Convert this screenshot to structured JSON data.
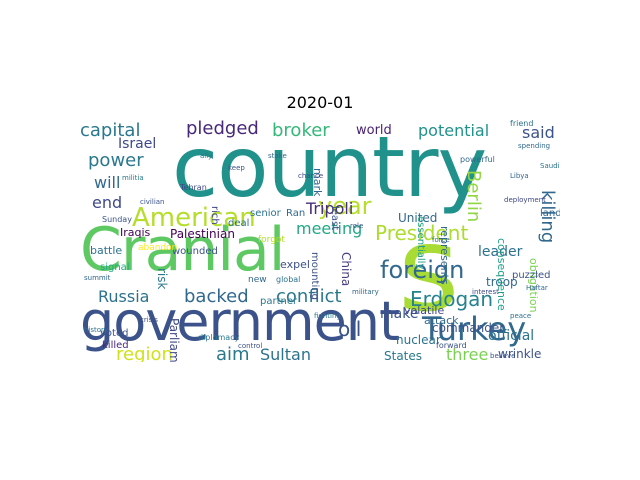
{
  "title": "2020-01",
  "words": [
    {
      "text": "country",
      "color": "#21918c"
    },
    {
      "text": "Cranial",
      "color": "#5ec962"
    },
    {
      "text": "s",
      "color": "#a8db34"
    },
    {
      "text": "government",
      "color": "#3b528b"
    },
    {
      "text": "Turkey",
      "color": "#31688e"
    },
    {
      "text": "American",
      "color": "#b5de2b"
    },
    {
      "text": "foreign",
      "color": "#31688e"
    },
    {
      "text": "President",
      "color": "#addc30"
    },
    {
      "text": "year",
      "color": "#b5de2b"
    },
    {
      "text": "Erdogan",
      "color": "#26828e"
    },
    {
      "text": "conflict",
      "color": "#2a788e"
    },
    {
      "text": "backed",
      "color": "#31688e"
    },
    {
      "text": "Russia",
      "color": "#2c728e"
    },
    {
      "text": "oil",
      "color": "#3b528b"
    },
    {
      "text": "aim",
      "color": "#2a788e"
    },
    {
      "text": "Sultan",
      "color": "#2c728e"
    },
    {
      "text": "region",
      "color": "#d0e11c"
    },
    {
      "text": "capital",
      "color": "#2a788e"
    },
    {
      "text": "pledged",
      "color": "#482878"
    },
    {
      "text": "broker",
      "color": "#35b779"
    },
    {
      "text": "potential",
      "color": "#21918c"
    },
    {
      "text": "said",
      "color": "#3b528b"
    },
    {
      "text": "power",
      "color": "#2a788e"
    },
    {
      "text": "will",
      "color": "#31688e"
    },
    {
      "text": "end",
      "color": "#3e4989"
    },
    {
      "text": "Tripoli",
      "color": "#472d7b"
    },
    {
      "text": "killing",
      "color": "#31688e"
    },
    {
      "text": "Berlin",
      "color": "#90d743"
    },
    {
      "text": "meeting",
      "color": "#22a884"
    },
    {
      "text": "leader",
      "color": "#2c728e"
    },
    {
      "text": "three",
      "color": "#7ad151"
    },
    {
      "text": "make",
      "color": "#3b528b"
    },
    {
      "text": "official",
      "color": "#2c728e"
    },
    {
      "text": "Israel",
      "color": "#3e4989"
    },
    {
      "text": "world",
      "color": "#481f70"
    },
    {
      "text": "Palestinian",
      "color": "#440154"
    },
    {
      "text": "United",
      "color": "#31688e"
    },
    {
      "text": "States",
      "color": "#2a788e"
    },
    {
      "text": "China",
      "color": "#433e85"
    },
    {
      "text": "Parliament",
      "color": "#3e4989"
    },
    {
      "text": "risk",
      "color": "#2a788e"
    },
    {
      "text": "commander",
      "color": "#3b528b"
    },
    {
      "text": "nuclear",
      "color": "#2c728e"
    },
    {
      "text": "attack",
      "color": "#31688e"
    },
    {
      "text": "wrinkle",
      "color": "#3b528b"
    },
    {
      "text": "troop",
      "color": "#31688e"
    },
    {
      "text": "volatile",
      "color": "#3e4989"
    },
    {
      "text": "represents",
      "color": "#31688e"
    },
    {
      "text": "Iraqis",
      "color": "#440154"
    },
    {
      "text": "battle",
      "color": "#2c728e"
    },
    {
      "text": "signal",
      "color": "#22a884"
    },
    {
      "text": "voted",
      "color": "#3b528b"
    },
    {
      "text": "killed",
      "color": "#482878"
    },
    {
      "text": "expel",
      "color": "#3b528b"
    },
    {
      "text": "senior",
      "color": "#2c728e"
    },
    {
      "text": "land",
      "color": "#31688e"
    },
    {
      "text": "obligation",
      "color": "#7ad151"
    },
    {
      "text": "consequence",
      "color": "#1f9e89"
    },
    {
      "text": "mounting",
      "color": "#3b528b"
    },
    {
      "text": "deal",
      "color": "#2c728e"
    },
    {
      "text": "rich",
      "color": "#3e4989"
    },
    {
      "text": "mark",
      "color": "#31688e"
    },
    {
      "text": "least",
      "color": "#3b528b"
    },
    {
      "text": "partner",
      "color": "#2a788e"
    },
    {
      "text": "wounded",
      "color": "#3b528b"
    },
    {
      "text": "Ran",
      "color": "#31688e"
    },
    {
      "text": "essentially",
      "color": "#1f9e89"
    },
    {
      "text": "puzzled",
      "color": "#3b528b"
    },
    {
      "text": "abandon",
      "color": "#fde725"
    },
    {
      "text": "forgot",
      "color": "#b5de2b"
    },
    {
      "text": "new",
      "color": "#31688e"
    },
    {
      "text": "Sunday",
      "color": "#3b528b"
    },
    {
      "text": "Tehran",
      "color": "#3e4989"
    },
    {
      "text": "global",
      "color": "#2c728e"
    },
    {
      "text": "powerful",
      "color": "#31688e"
    },
    {
      "text": "diplomacy",
      "color": "#2a788e"
    },
    {
      "text": "forward",
      "color": "#3b528b"
    },
    {
      "text": "spending",
      "color": "#31688e"
    },
    {
      "text": "deployment",
      "color": "#3e4989"
    },
    {
      "text": "friend",
      "color": "#2c728e"
    },
    {
      "text": "believe",
      "color": "#3b528b"
    },
    {
      "text": "military",
      "color": "#31688e"
    },
    {
      "text": "ally",
      "color": "#2a788e"
    },
    {
      "text": "keep",
      "color": "#3b528b"
    },
    {
      "text": "stake",
      "color": "#31688e"
    },
    {
      "text": "chance",
      "color": "#3e4989"
    },
    {
      "text": "Saudi",
      "color": "#2c728e"
    },
    {
      "text": "Libya",
      "color": "#31688e"
    },
    {
      "text": "civilian",
      "color": "#3b528b"
    },
    {
      "text": "militia",
      "color": "#2a788e"
    },
    {
      "text": "Haftar",
      "color": "#31688e"
    },
    {
      "text": "control",
      "color": "#3b528b"
    },
    {
      "text": "history",
      "color": "#2c728e"
    },
    {
      "text": "interest",
      "color": "#3e4989"
    },
    {
      "text": "summit",
      "color": "#31688e"
    },
    {
      "text": "fighting",
      "color": "#2a788e"
    },
    {
      "text": "role",
      "color": "#3b528b"
    },
    {
      "text": "force",
      "color": "#31688e"
    },
    {
      "text": "peace",
      "color": "#2c728e"
    },
    {
      "text": "crisis",
      "color": "#3e4989"
    }
  ]
}
